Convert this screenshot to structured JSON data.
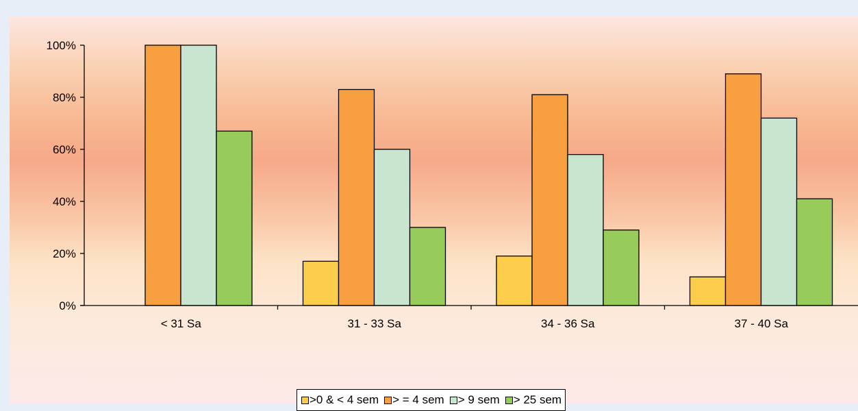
{
  "chart_data": {
    "type": "bar",
    "categories": [
      "< 31 Sa",
      "31 - 33 Sa",
      "34 - 36 Sa",
      "37 - 40 Sa"
    ],
    "series": [
      {
        "name": ">0 & < 4 sem",
        "color": "#fbcd4a",
        "values": [
          0,
          17,
          19,
          11
        ]
      },
      {
        "name": "> = 4  sem",
        "color": "#f8a040",
        "values": [
          100,
          83,
          81,
          89
        ]
      },
      {
        "name": "> 9 sem",
        "color": "#c8e5cf",
        "values": [
          100,
          60,
          58,
          72
        ]
      },
      {
        "name": "> 25 sem",
        "color": "#97cb5a",
        "values": [
          67,
          30,
          29,
          41
        ]
      }
    ],
    "y_ticks": [
      "0%",
      "20%",
      "40%",
      "60%",
      "80%",
      "100%"
    ],
    "ylim": [
      0,
      100
    ],
    "title": "",
    "xlabel": "",
    "ylabel": "",
    "grid": false,
    "legend_position": "bottom"
  }
}
